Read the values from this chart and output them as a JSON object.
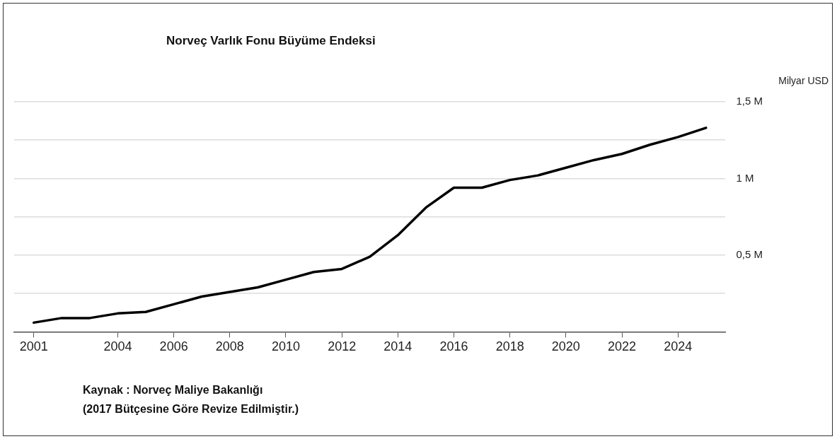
{
  "chart_data": {
    "type": "line",
    "title": "Norveç Varlık Fonu Büyüme Endeksi",
    "ylabel": "Milyar USD",
    "x": [
      2001,
      2002,
      2003,
      2004,
      2005,
      2006,
      2007,
      2008,
      2009,
      2010,
      2011,
      2012,
      2013,
      2014,
      2015,
      2016,
      2017,
      2018,
      2019,
      2020,
      2021,
      2022,
      2023,
      2024,
      2025
    ],
    "series": [
      {
        "color": "#000000",
        "values": [
          0.06,
          0.09,
          0.09,
          0.12,
          0.13,
          0.18,
          0.23,
          0.26,
          0.29,
          0.34,
          0.39,
          0.41,
          0.49,
          0.63,
          0.81,
          0.94,
          0.94,
          0.99,
          1.02,
          1.07,
          1.12,
          1.16,
          1.22,
          1.27,
          1.33
        ]
      }
    ],
    "xlim": [
      2000.3,
      2025.7
    ],
    "xticks": [
      2001,
      2004,
      2006,
      2008,
      2010,
      2012,
      2014,
      2016,
      2018,
      2020,
      2022,
      2024
    ],
    "ylim": [
      0,
      1.5
    ],
    "yticks": [
      {
        "value": 0,
        "label": null
      },
      {
        "value": 0.25,
        "label": null
      },
      {
        "value": 0.5,
        "label": "0,5 M"
      },
      {
        "value": 0.75,
        "label": null
      },
      {
        "value": 1,
        "label": "1 M"
      },
      {
        "value": 1.25,
        "label": null
      },
      {
        "value": 1.5,
        "label": "1,5 M"
      }
    ],
    "grid": "y",
    "legend": false,
    "marker": "none",
    "line_style": "solid",
    "annotations": [
      "Kaynak : Norveç Maliye Bakanlığı",
      "(2017 Bütçesine Göre Revize Edilmiştir.)"
    ]
  }
}
